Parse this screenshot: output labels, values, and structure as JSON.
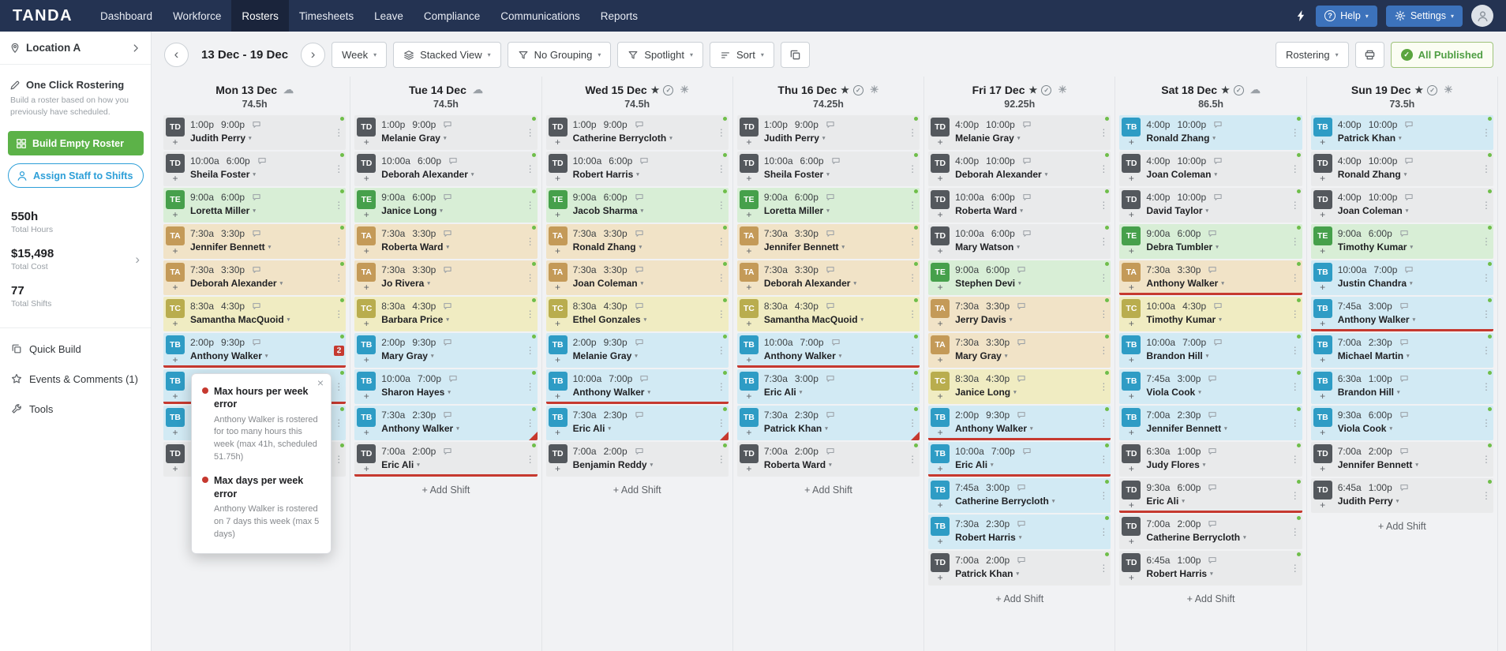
{
  "navbar": {
    "logo": "TANDA",
    "items": [
      {
        "label": "Dashboard",
        "active": false
      },
      {
        "label": "Workforce",
        "active": false
      },
      {
        "label": "Rosters",
        "active": true
      },
      {
        "label": "Timesheets",
        "active": false
      },
      {
        "label": "Leave",
        "active": false
      },
      {
        "label": "Compliance",
        "active": false
      },
      {
        "label": "Communications",
        "active": false
      },
      {
        "label": "Reports",
        "active": false
      }
    ],
    "help_label": "Help",
    "help_icon": "?",
    "settings_label": "Settings"
  },
  "sidebar": {
    "location": "Location A",
    "one_click_title": "One Click Rostering",
    "one_click_desc": "Build a roster based on how you previously have scheduled.",
    "build_button": "Build Empty Roster",
    "assign_button": "Assign Staff to Shifts",
    "stats": [
      {
        "value": "550h",
        "label": "Total Hours",
        "chevron": false
      },
      {
        "value": "$15,498",
        "label": "Total Cost",
        "chevron": true
      },
      {
        "value": "77",
        "label": "Total Shifts",
        "chevron": false
      }
    ],
    "links": [
      {
        "label": "Quick Build",
        "icon": "copy-icon"
      },
      {
        "label": "Events & Comments (1)",
        "icon": "star-icon"
      },
      {
        "label": "Tools",
        "icon": "wrench-icon"
      }
    ]
  },
  "toolbar": {
    "date_range": "13 Dec - 19 Dec",
    "view": "Week",
    "stacked_view": "Stacked View",
    "grouping": "No Grouping",
    "spotlight": "Spotlight",
    "sort": "Sort",
    "mode": "Rostering",
    "published": "All Published"
  },
  "add_shift_label": "+ Add Shift",
  "days": [
    {
      "name": "Mon 13 Dec",
      "hours": "74.5h",
      "starred": false,
      "published": false,
      "weather": "cloud",
      "add_shift": false,
      "shifts": [
        {
          "badge": "TD",
          "start": "1:00p",
          "end": "9:00p",
          "name": "Judith Perry"
        },
        {
          "badge": "TD",
          "start": "10:00a",
          "end": "6:00p",
          "name": "Sheila Foster"
        },
        {
          "badge": "TE",
          "start": "9:00a",
          "end": "6:00p",
          "name": "Loretta Miller"
        },
        {
          "badge": "TA",
          "start": "7:30a",
          "end": "3:30p",
          "name": "Jennifer Bennett"
        },
        {
          "badge": "TA",
          "start": "7:30a",
          "end": "3:30p",
          "name": "Deborah Alexander"
        },
        {
          "badge": "TC",
          "start": "8:30a",
          "end": "4:30p",
          "name": "Samantha MacQuoid"
        },
        {
          "badge": "TB",
          "start": "2:00p",
          "end": "9:30p",
          "name": "Anthony Walker",
          "red_underline": true,
          "error_count": "2"
        },
        {
          "badge": "TB",
          "covered": true,
          "red_underline": true
        },
        {
          "badge": "TB",
          "covered": true
        },
        {
          "badge": "TD",
          "covered": true
        }
      ]
    },
    {
      "name": "Tue 14 Dec",
      "hours": "74.5h",
      "starred": false,
      "published": false,
      "weather": "cloud",
      "add_shift": true,
      "shifts": [
        {
          "badge": "TD",
          "start": "1:00p",
          "end": "9:00p",
          "name": "Melanie Gray"
        },
        {
          "badge": "TD",
          "start": "10:00a",
          "end": "6:00p",
          "name": "Deborah Alexander"
        },
        {
          "badge": "TE",
          "start": "9:00a",
          "end": "6:00p",
          "name": "Janice Long"
        },
        {
          "badge": "TA",
          "start": "7:30a",
          "end": "3:30p",
          "name": "Roberta Ward"
        },
        {
          "badge": "TA",
          "start": "7:30a",
          "end": "3:30p",
          "name": "Jo Rivera"
        },
        {
          "badge": "TC",
          "start": "8:30a",
          "end": "4:30p",
          "name": "Barbara Price"
        },
        {
          "badge": "TB",
          "start": "2:00p",
          "end": "9:30p",
          "name": "Mary Gray"
        },
        {
          "badge": "TB",
          "start": "10:00a",
          "end": "7:00p",
          "name": "Sharon Hayes"
        },
        {
          "badge": "TB",
          "start": "7:30a",
          "end": "2:30p",
          "name": "Anthony Walker",
          "red_corner": true
        },
        {
          "badge": "TD",
          "start": "7:00a",
          "end": "2:00p",
          "name": "Eric Ali",
          "red_underline": true
        }
      ]
    },
    {
      "name": "Wed 15 Dec",
      "hours": "74.5h",
      "starred": true,
      "published": true,
      "weather": "sun",
      "add_shift": true,
      "shifts": [
        {
          "badge": "TD",
          "start": "1:00p",
          "end": "9:00p",
          "name": "Catherine Berrycloth"
        },
        {
          "badge": "TD",
          "start": "10:00a",
          "end": "6:00p",
          "name": "Robert Harris"
        },
        {
          "badge": "TE",
          "start": "9:00a",
          "end": "6:00p",
          "name": "Jacob Sharma"
        },
        {
          "badge": "TA",
          "start": "7:30a",
          "end": "3:30p",
          "name": "Ronald Zhang"
        },
        {
          "badge": "TA",
          "start": "7:30a",
          "end": "3:30p",
          "name": "Joan Coleman"
        },
        {
          "badge": "TC",
          "start": "8:30a",
          "end": "4:30p",
          "name": "Ethel Gonzales"
        },
        {
          "badge": "TB",
          "start": "2:00p",
          "end": "9:30p",
          "name": "Melanie Gray"
        },
        {
          "badge": "TB",
          "start": "10:00a",
          "end": "7:00p",
          "name": "Anthony Walker",
          "red_underline": true
        },
        {
          "badge": "TB",
          "start": "7:30a",
          "end": "2:30p",
          "name": "Eric Ali",
          "red_corner": true
        },
        {
          "badge": "TD",
          "start": "7:00a",
          "end": "2:00p",
          "name": "Benjamin Reddy"
        }
      ]
    },
    {
      "name": "Thu 16 Dec",
      "hours": "74.25h",
      "starred": true,
      "published": true,
      "weather": "sun",
      "add_shift": true,
      "shifts": [
        {
          "badge": "TD",
          "start": "1:00p",
          "end": "9:00p",
          "name": "Judith Perry"
        },
        {
          "badge": "TD",
          "start": "10:00a",
          "end": "6:00p",
          "name": "Sheila Foster"
        },
        {
          "badge": "TE",
          "start": "9:00a",
          "end": "6:00p",
          "name": "Loretta Miller"
        },
        {
          "badge": "TA",
          "start": "7:30a",
          "end": "3:30p",
          "name": "Jennifer Bennett"
        },
        {
          "badge": "TA",
          "start": "7:30a",
          "end": "3:30p",
          "name": "Deborah Alexander"
        },
        {
          "badge": "TC",
          "start": "8:30a",
          "end": "4:30p",
          "name": "Samantha MacQuoid"
        },
        {
          "badge": "TB",
          "start": "10:00a",
          "end": "7:00p",
          "name": "Anthony Walker",
          "red_underline": true
        },
        {
          "badge": "TB",
          "start": "7:30a",
          "end": "3:00p",
          "name": "Eric Ali"
        },
        {
          "badge": "TB",
          "start": "7:30a",
          "end": "2:30p",
          "name": "Patrick Khan",
          "red_corner": true
        },
        {
          "badge": "TD",
          "start": "7:00a",
          "end": "2:00p",
          "name": "Roberta Ward"
        }
      ]
    },
    {
      "name": "Fri 17 Dec",
      "hours": "92.25h",
      "starred": true,
      "published": true,
      "weather": "sun",
      "add_shift": true,
      "shifts": [
        {
          "badge": "TD",
          "start": "4:00p",
          "end": "10:00p",
          "name": "Melanie Gray"
        },
        {
          "badge": "TD",
          "start": "4:00p",
          "end": "10:00p",
          "name": "Deborah Alexander"
        },
        {
          "badge": "TD",
          "start": "10:00a",
          "end": "6:00p",
          "name": "Roberta Ward"
        },
        {
          "badge": "TD",
          "start": "10:00a",
          "end": "6:00p",
          "name": "Mary Watson"
        },
        {
          "badge": "TE",
          "start": "9:00a",
          "end": "6:00p",
          "name": "Stephen Devi"
        },
        {
          "badge": "TA",
          "start": "7:30a",
          "end": "3:30p",
          "name": "Jerry Davis"
        },
        {
          "badge": "TA",
          "start": "7:30a",
          "end": "3:30p",
          "name": "Mary Gray"
        },
        {
          "badge": "TC",
          "start": "8:30a",
          "end": "4:30p",
          "name": "Janice Long"
        },
        {
          "badge": "TB",
          "start": "2:00p",
          "end": "9:30p",
          "name": "Anthony Walker",
          "red_underline": true
        },
        {
          "badge": "TB",
          "start": "10:00a",
          "end": "7:00p",
          "name": "Eric Ali",
          "red_underline": true
        },
        {
          "badge": "TB",
          "start": "7:45a",
          "end": "3:00p",
          "name": "Catherine Berrycloth"
        },
        {
          "badge": "TB",
          "start": "7:30a",
          "end": "2:30p",
          "name": "Robert Harris"
        },
        {
          "badge": "TD",
          "start": "7:00a",
          "end": "2:00p",
          "name": "Patrick Khan"
        }
      ]
    },
    {
      "name": "Sat 18 Dec",
      "hours": "86.5h",
      "starred": true,
      "published": true,
      "weather": "cloud",
      "add_shift": true,
      "shifts": [
        {
          "badge": "TB",
          "start": "4:00p",
          "end": "10:00p",
          "name": "Ronald Zhang"
        },
        {
          "badge": "TD",
          "start": "4:00p",
          "end": "10:00p",
          "name": "Joan Coleman"
        },
        {
          "badge": "TD",
          "start": "4:00p",
          "end": "10:00p",
          "name": "David Taylor"
        },
        {
          "badge": "TE",
          "start": "9:00a",
          "end": "6:00p",
          "name": "Debra Tumbler"
        },
        {
          "badge": "TA",
          "start": "7:30a",
          "end": "3:30p",
          "name": "Anthony Walker",
          "red_underline": true
        },
        {
          "badge": "TC",
          "start": "10:00a",
          "end": "4:30p",
          "name": "Timothy Kumar"
        },
        {
          "badge": "TB",
          "start": "10:00a",
          "end": "7:00p",
          "name": "Brandon Hill"
        },
        {
          "badge": "TB",
          "start": "7:45a",
          "end": "3:00p",
          "name": "Viola Cook"
        },
        {
          "badge": "TB",
          "start": "7:00a",
          "end": "2:30p",
          "name": "Jennifer Bennett"
        },
        {
          "badge": "TD",
          "start": "6:30a",
          "end": "1:00p",
          "name": "Judy Flores"
        },
        {
          "badge": "TD",
          "start": "9:30a",
          "end": "6:00p",
          "name": "Eric Ali",
          "red_underline": true
        },
        {
          "badge": "TD",
          "start": "7:00a",
          "end": "2:00p",
          "name": "Catherine Berrycloth"
        },
        {
          "badge": "TD",
          "start": "6:45a",
          "end": "1:00p",
          "name": "Robert Harris"
        }
      ]
    },
    {
      "name": "Sun 19 Dec",
      "hours": "73.5h",
      "starred": true,
      "published": true,
      "weather": "sun",
      "add_shift": true,
      "shifts": [
        {
          "badge": "TB",
          "start": "4:00p",
          "end": "10:00p",
          "name": "Patrick Khan"
        },
        {
          "badge": "TD",
          "start": "4:00p",
          "end": "10:00p",
          "name": "Ronald Zhang"
        },
        {
          "badge": "TD",
          "start": "4:00p",
          "end": "10:00p",
          "name": "Joan Coleman"
        },
        {
          "badge": "TE",
          "start": "9:00a",
          "end": "6:00p",
          "name": "Timothy Kumar"
        },
        {
          "badge": "TB",
          "start": "10:00a",
          "end": "7:00p",
          "name": "Justin Chandra"
        },
        {
          "badge": "TB",
          "start": "7:45a",
          "end": "3:00p",
          "name": "Anthony Walker",
          "red_underline": true
        },
        {
          "badge": "TB",
          "start": "7:00a",
          "end": "2:30p",
          "name": "Michael Martin"
        },
        {
          "badge": "TB",
          "start": "6:30a",
          "end": "1:00p",
          "name": "Brandon Hill"
        },
        {
          "badge": "TB",
          "start": "9:30a",
          "end": "6:00p",
          "name": "Viola Cook"
        },
        {
          "badge": "TD",
          "start": "7:00a",
          "end": "2:00p",
          "name": "Jennifer Bennett"
        },
        {
          "badge": "TD",
          "start": "6:45a",
          "end": "1:00p",
          "name": "Judith Perry"
        }
      ]
    }
  ],
  "tooltip": {
    "errors": [
      {
        "title": "Max hours per week error",
        "body": "Anthony Walker is rostered for too many hours this week (max 41h, scheduled 51.75h)"
      },
      {
        "title": "Max days per week error",
        "body": "Anthony Walker is rostered on 7 days this week (max 5 days)"
      }
    ]
  },
  "icons": {
    "weather_sun": "☀",
    "weather_cloud": "☁",
    "star": "★",
    "check": "✓",
    "more_options": "⋮",
    "caret_down": "▾",
    "chevron_left": "‹",
    "chevron_right": "›",
    "close": "×",
    "plus": "+"
  },
  "colors": {
    "navbar": "#243352",
    "nav-button": "#3c72bb",
    "primary-green": "#5cb248",
    "primary-blue": "#2d9fd8",
    "published-border": "#9ec37a",
    "published-text": "#4f9e43",
    "published-dot": "#6fbe4a",
    "danger": "#c6392f",
    "td-badge": "#54585d",
    "td-bg": "#e9eaeb",
    "te-badge": "#46a04b",
    "te-bg": "#d8eed6",
    "ta-badge": "#c49a58",
    "ta-bg": "#f1e3c7",
    "tc-badge": "#b9ad4e",
    "tc-bg": "#f0ecc2",
    "tb-badge": "#2e9cc5",
    "tb-bg": "#d2eaf4"
  }
}
